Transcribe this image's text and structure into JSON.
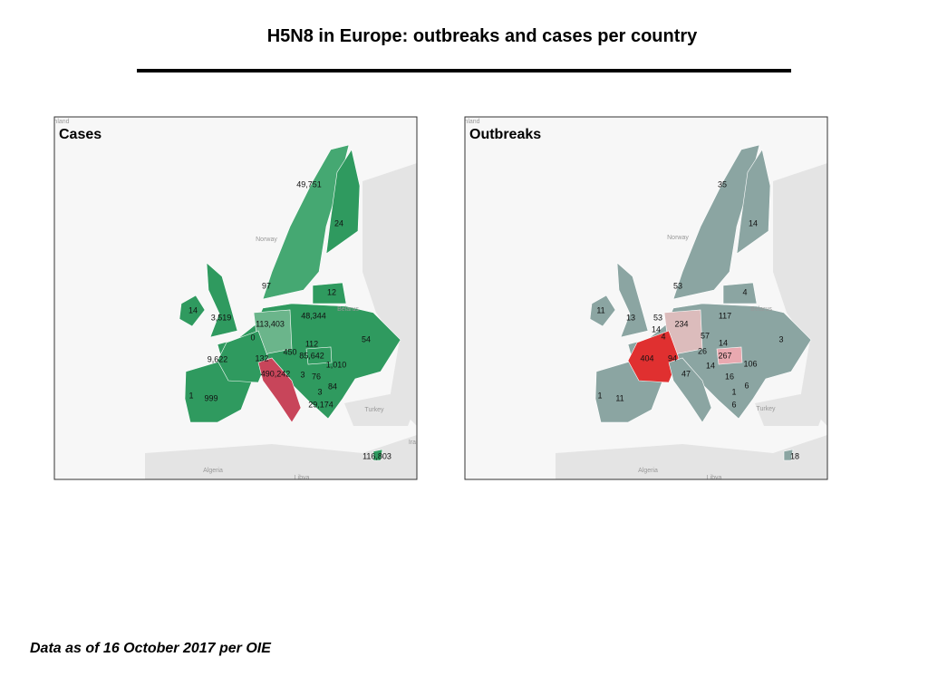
{
  "header": {
    "title": "H5N8 in Europe: outbreaks and cases per country"
  },
  "maps": [
    {
      "title": "Cases",
      "places": [
        "nland",
        "Norway",
        "Belarus",
        "Turkey",
        "Algeria",
        "Libya",
        "Ira"
      ],
      "labels": [
        "49,751",
        "24",
        "97",
        "12",
        "14",
        "3,519",
        "113,403",
        "48,344",
        "0",
        "54",
        "112",
        "450",
        "85,642",
        "9,622",
        "132",
        "1,010",
        "490,242",
        "3",
        "76",
        "84",
        "3",
        "1",
        "999",
        "29,174",
        "116,803"
      ]
    },
    {
      "title": "Outbreaks",
      "places": [
        "nland",
        "Norway",
        "Belarus",
        "Turkey",
        "Algeria",
        "Libya"
      ],
      "labels": [
        "35",
        "14",
        "53",
        "4",
        "11",
        "13",
        "53",
        "234",
        "117",
        "14",
        "4",
        "57",
        "14",
        "3",
        "404",
        "94",
        "26",
        "267",
        "106",
        "47",
        "14",
        "16",
        "6",
        "1",
        "11",
        "1",
        "6",
        "18"
      ]
    }
  ],
  "footer": {
    "note": "Data as of 16 October 2017 per OIE"
  }
}
